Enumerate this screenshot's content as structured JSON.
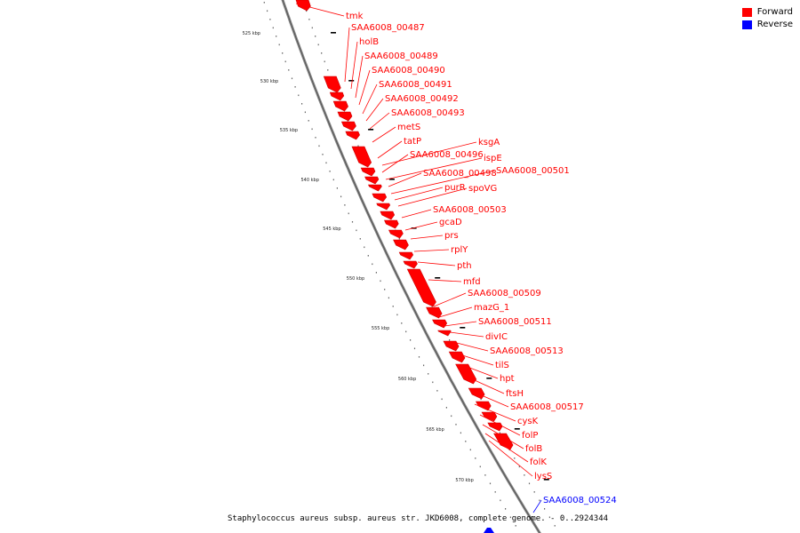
{
  "legend": {
    "forward_label": "Forward",
    "reverse_label": "Reverse",
    "forward_color": "#ff0000",
    "reverse_color": "#0000ff"
  },
  "caption": "Staphylococcus aureus subsp. aureus str. JKD6008, complete genome. - 0..2924344",
  "ticks": [
    "525 kbp",
    "530 kbp",
    "535 kbp",
    "540 kbp",
    "545 kbp",
    "550 kbp",
    "555 kbp",
    "560 kbp",
    "565 kbp",
    "570 kbp"
  ],
  "genes": [
    {
      "name": "tmk",
      "strand": "forward"
    },
    {
      "name": "SAA6008_00487",
      "strand": "forward"
    },
    {
      "name": "holB",
      "strand": "forward"
    },
    {
      "name": "SAA6008_00489",
      "strand": "forward"
    },
    {
      "name": "SAA6008_00490",
      "strand": "forward"
    },
    {
      "name": "SAA6008_00491",
      "strand": "forward"
    },
    {
      "name": "SAA6008_00492",
      "strand": "forward"
    },
    {
      "name": "SAA6008_00493",
      "strand": "forward"
    },
    {
      "name": "metS",
      "strand": "forward"
    },
    {
      "name": "tatP",
      "strand": "forward"
    },
    {
      "name": "ksgA",
      "strand": "forward"
    },
    {
      "name": "SAA6008_00496",
      "strand": "forward"
    },
    {
      "name": "ispE",
      "strand": "forward"
    },
    {
      "name": "SAA6008_00498",
      "strand": "forward"
    },
    {
      "name": "SAA6008_00501",
      "strand": "forward"
    },
    {
      "name": "purR",
      "strand": "forward"
    },
    {
      "name": "spoVG",
      "strand": "forward"
    },
    {
      "name": "SAA6008_00503",
      "strand": "forward"
    },
    {
      "name": "gcaD",
      "strand": "forward"
    },
    {
      "name": "prs",
      "strand": "forward"
    },
    {
      "name": "rplY",
      "strand": "forward"
    },
    {
      "name": "pth",
      "strand": "forward"
    },
    {
      "name": "mfd",
      "strand": "forward"
    },
    {
      "name": "SAA6008_00509",
      "strand": "forward"
    },
    {
      "name": "mazG_1",
      "strand": "forward"
    },
    {
      "name": "SAA6008_00511",
      "strand": "forward"
    },
    {
      "name": "divIC",
      "strand": "forward"
    },
    {
      "name": "SAA6008_00513",
      "strand": "forward"
    },
    {
      "name": "tilS",
      "strand": "forward"
    },
    {
      "name": "hpt",
      "strand": "forward"
    },
    {
      "name": "ftsH",
      "strand": "forward"
    },
    {
      "name": "SAA6008_00517",
      "strand": "forward"
    },
    {
      "name": "cysK",
      "strand": "forward"
    },
    {
      "name": "folP",
      "strand": "forward"
    },
    {
      "name": "folB",
      "strand": "forward"
    },
    {
      "name": "folK",
      "strand": "forward"
    },
    {
      "name": "lysS",
      "strand": "forward"
    },
    {
      "name": "SAA6008_00524",
      "strand": "reverse"
    }
  ]
}
